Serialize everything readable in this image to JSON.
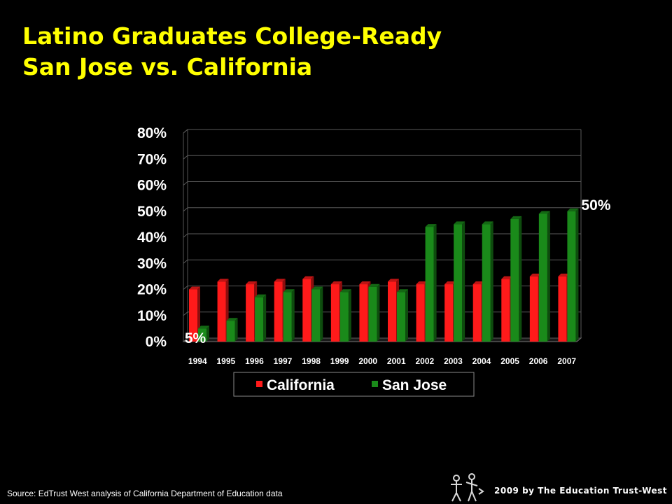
{
  "slide": {
    "title_line1": "Latino Graduates College-Ready",
    "title_line2": "San Jose vs. California",
    "source": "Source: EdTrust West analysis of California Department of Education data",
    "credit": "2009 by The Education Trust-West",
    "logo_icon": "education-trust-west-logo"
  },
  "colors": {
    "background": "#000000",
    "title": "#ffff00",
    "california": "#ff1a1a",
    "san_jose": "#1a8a1a",
    "text": "#ffffff"
  },
  "chart_data": {
    "type": "bar",
    "categories": [
      "1994",
      "1995",
      "1996",
      "1997",
      "1998",
      "1999",
      "2000",
      "2001",
      "2002",
      "2003",
      "2004",
      "2005",
      "2006",
      "2007"
    ],
    "series": [
      {
        "name": "California",
        "color": "#ff1a1a",
        "values": [
          20,
          23,
          22,
          23,
          24,
          22,
          22,
          23,
          22,
          22,
          22,
          24,
          25,
          25
        ]
      },
      {
        "name": "San Jose",
        "color": "#1a8a1a",
        "values": [
          5,
          8,
          17,
          19,
          20,
          19,
          21,
          19,
          44,
          45,
          45,
          47,
          49,
          50
        ]
      }
    ],
    "ylim": [
      0,
      80
    ],
    "yticks": [
      "0%",
      "10%",
      "20%",
      "30%",
      "40%",
      "50%",
      "60%",
      "70%",
      "80%"
    ],
    "annotations": [
      {
        "text": "5%",
        "series": "San Jose",
        "category": "1994"
      },
      {
        "text": "50%",
        "series": "San Jose",
        "category": "2007"
      }
    ],
    "grid": true,
    "legend": "bottom",
    "style": "3d"
  }
}
